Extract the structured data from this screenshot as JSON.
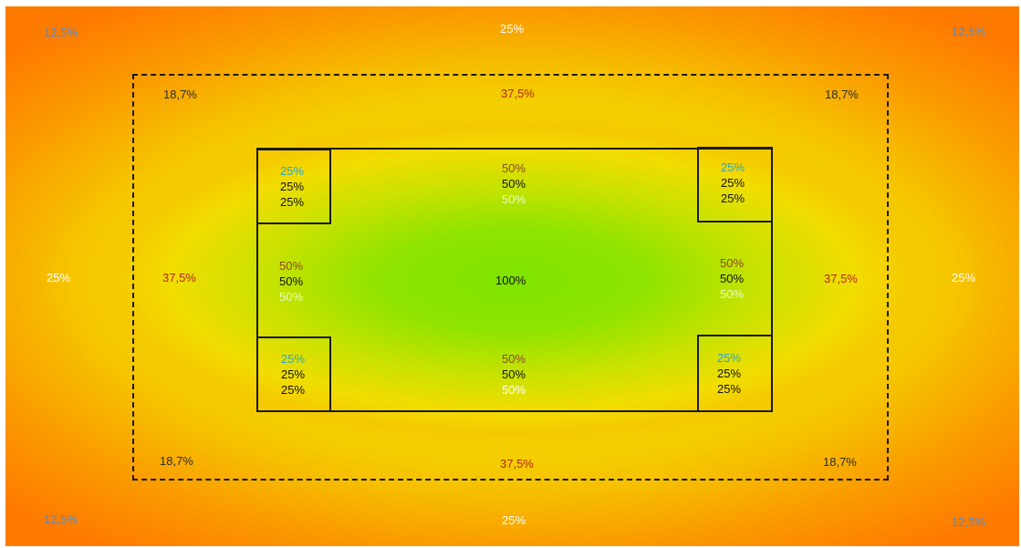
{
  "outer": {
    "top_left": "12,5%",
    "top_center": "25%",
    "top_right": "12,5%",
    "middle_left": "25%",
    "middle_right": "25%",
    "bottom_left": "12,5%",
    "bottom_center": "25%",
    "bottom_right": "12,5%"
  },
  "dashed_zone": {
    "top_left": "18,7%",
    "top_center": "37,5%",
    "top_right": "18,7%",
    "middle_left": "37,5%",
    "middle_right": "37,5%",
    "bottom_left": "18,7%",
    "bottom_center": "37,5%",
    "bottom_right": "18,7%"
  },
  "inner": {
    "center": "100%",
    "corner_tl": [
      "25%",
      "25%",
      "25%"
    ],
    "corner_tr": [
      "25%",
      "25%",
      "25%"
    ],
    "corner_bl": [
      "25%",
      "25%",
      "25%"
    ],
    "corner_br": [
      "25%",
      "25%",
      "25%"
    ],
    "edge_top": [
      "50%",
      "50%",
      "50%"
    ],
    "edge_bottom": [
      "50%",
      "50%",
      "50%"
    ],
    "edge_left": [
      "50%",
      "50%",
      "50%"
    ],
    "edge_right": [
      "50%",
      "50%",
      "50%"
    ]
  },
  "colors": {
    "outer_orange": "#ff7800",
    "middle_yellow": "#f2dd00",
    "center_green": "#7ee300"
  }
}
